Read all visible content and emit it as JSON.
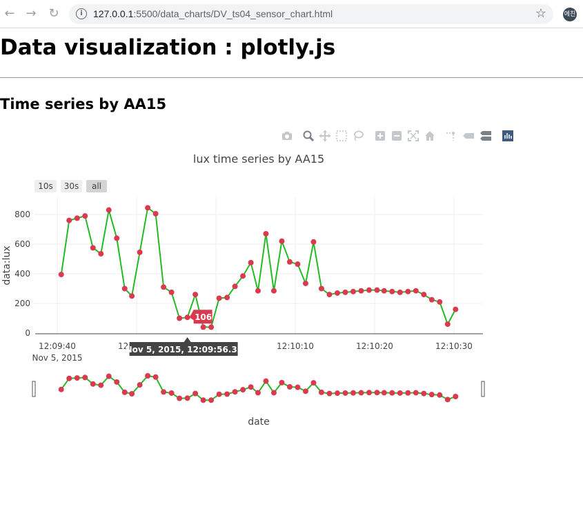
{
  "browser": {
    "url_host": "127.0.0.1",
    "url_rest": ":5500/data_charts/DV_ts04_sensor_chart.html",
    "avatar_text": "에친",
    "icons": [
      "back-arrow-icon",
      "forward-arrow-icon",
      "reload-icon",
      "info-icon",
      "star-icon"
    ]
  },
  "page": {
    "heading": "Data visualization : plotly.js",
    "subheading": "Time series by AA15"
  },
  "modebar": {
    "icons": [
      "camera-icon",
      "zoom-icon",
      "pan-icon",
      "box-select-icon",
      "lasso-select-icon",
      "zoom-in-icon",
      "zoom-out-icon",
      "autoscale-icon",
      "reset-axes-icon",
      "spike-lines-icon",
      "hover-closest-icon",
      "hover-compare-icon",
      "plotly-logo-icon"
    ]
  },
  "range_selector": {
    "buttons": [
      {
        "label": "10s",
        "active": false
      },
      {
        "label": "30s",
        "active": false
      },
      {
        "label": "all",
        "active": true
      }
    ]
  },
  "hover": {
    "value_label": "106",
    "x_label": "Nov 5, 2015, 12:09:56.389"
  },
  "colors": {
    "line": "#22bb22",
    "marker": "#d93a4f",
    "grid": "#eeeeee",
    "axis": "#444444",
    "hover_x_bg": "#444444"
  },
  "chart_data": {
    "type": "line",
    "title": "lux time series by AA15",
    "xlabel": "date",
    "ylabel": "data:lux",
    "ylim": [
      0,
      880
    ],
    "y_ticks": [
      "0",
      "200",
      "400",
      "600",
      "800"
    ],
    "x_ticks": [
      "12:09:40",
      "12:09:50",
      "12:10:10",
      "12:10:20",
      "12:10:30"
    ],
    "x_tick_sublabel": "Nov 5, 2015",
    "x_date": "Nov 5, 2015",
    "grid": true,
    "rangeslider": true,
    "series": [
      {
        "x": [
          "12:09:40.5",
          "12:09:41.5",
          "12:09:42.5",
          "12:09:43.5",
          "12:09:44.5",
          "12:09:45.5",
          "12:09:46.5",
          "12:09:47.5",
          "12:09:48.5",
          "12:09:49.4",
          "12:09:50.4",
          "12:09:51.4",
          "12:09:52.4",
          "12:09:53.4",
          "12:09:54.4",
          "12:09:55.4",
          "12:09:56.4",
          "12:09:57.4",
          "12:09:58.4",
          "12:09:59.4",
          "12:10:00.4",
          "12:10:01.4",
          "12:10:02.4",
          "12:10:03.4",
          "12:10:04.4",
          "12:10:05.3",
          "12:10:06.3",
          "12:10:07.3",
          "12:10:08.3",
          "12:10:09.3",
          "12:10:10.3",
          "12:10:11.3",
          "12:10:12.3",
          "12:10:13.3",
          "12:10:14.3",
          "12:10:15.3",
          "12:10:16.3",
          "12:10:17.3",
          "12:10:18.3",
          "12:10:19.3",
          "12:10:20.3",
          "12:10:21.2",
          "12:10:22.2",
          "12:10:23.2",
          "12:10:24.2",
          "12:10:25.2",
          "12:10:26.2",
          "12:10:27.2",
          "12:10:28.2",
          "12:10:29.2",
          "12:10:30.2"
        ],
        "y": [
          395,
          760,
          775,
          790,
          575,
          535,
          830,
          640,
          300,
          250,
          545,
          845,
          805,
          310,
          275,
          100,
          106,
          260,
          40,
          40,
          235,
          240,
          315,
          385,
          475,
          285,
          670,
          285,
          620,
          480,
          465,
          335,
          615,
          300,
          260,
          270,
          275,
          280,
          285,
          290,
          290,
          285,
          280,
          275,
          280,
          285,
          260,
          225,
          210,
          60,
          160
        ]
      }
    ]
  }
}
